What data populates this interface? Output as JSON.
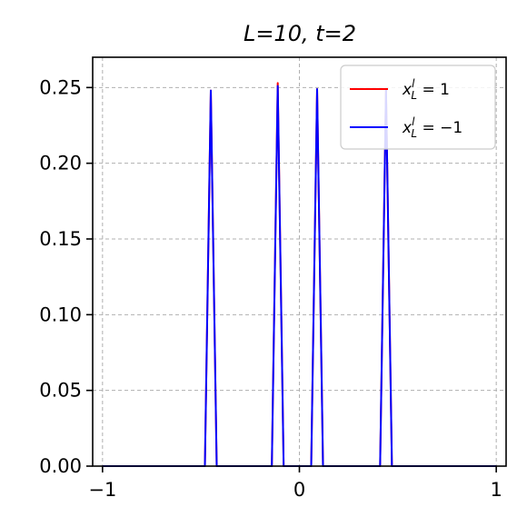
{
  "chart_data": {
    "type": "line",
    "title": "L=10, t=2",
    "xlabel": "",
    "ylabel": "",
    "xlim": [
      -1.05,
      1.05
    ],
    "ylim": [
      0,
      0.27
    ],
    "x_ticks": [
      -1,
      0,
      1
    ],
    "x_tick_labels": [
      "−1",
      "0",
      "1"
    ],
    "y_ticks": [
      0,
      0.05,
      0.1,
      0.15,
      0.2,
      0.25
    ],
    "y_tick_labels": [
      "0.00",
      "0.05",
      "0.10",
      "0.15",
      "0.20",
      "0.25"
    ],
    "grid": true,
    "legend_position": "top-right",
    "series": [
      {
        "name": "x_L^l = 1",
        "legend_base": "x",
        "legend_sup": "l",
        "legend_sub": "L",
        "legend_rhs": " = 1",
        "color": "#ff0000",
        "x": [
          -1,
          -0.48,
          -0.45,
          -0.42,
          -0.14,
          -0.11,
          -0.08,
          0.06,
          0.09,
          0.12,
          0.41,
          0.44,
          0.47,
          1
        ],
        "y": [
          0,
          0,
          0.248,
          0,
          0,
          0.253,
          0,
          0,
          0.249,
          0,
          0,
          0.249,
          0,
          0
        ]
      },
      {
        "name": "x_L^l = -1",
        "legend_base": "x",
        "legend_sup": "l",
        "legend_sub": "L",
        "legend_rhs": " = −1",
        "color": "#0000ff",
        "x": [
          -1,
          -0.48,
          -0.45,
          -0.42,
          -0.14,
          -0.11,
          -0.08,
          0.06,
          0.09,
          0.12,
          0.41,
          0.44,
          0.47,
          1
        ],
        "y": [
          0,
          0,
          0.248,
          0,
          0,
          0.251,
          0,
          0,
          0.249,
          0,
          0,
          0.249,
          0,
          0
        ]
      }
    ]
  }
}
